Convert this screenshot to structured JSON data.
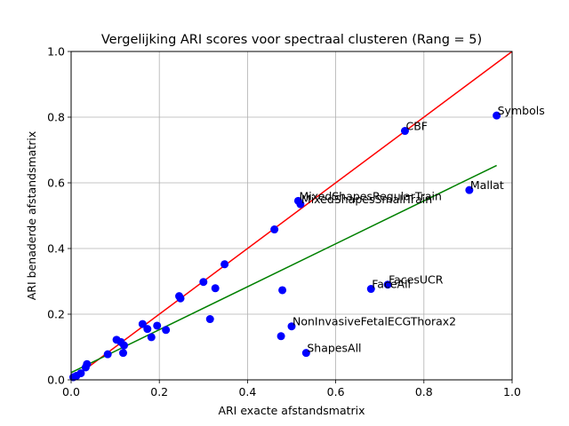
{
  "chart_data": {
    "type": "scatter",
    "title": "Vergelijking ARI scores voor spectraal clusteren (Rang = 5)",
    "xlabel": "ARI exacte afstandsmatrix",
    "ylabel": "ARI benaderde afstandsmatrix",
    "xlim": [
      0,
      1
    ],
    "ylim": [
      0,
      1
    ],
    "xticks": [
      "0.0",
      "0.2",
      "0.4",
      "0.6",
      "0.8",
      "1.0"
    ],
    "yticks": [
      "0.0",
      "0.2",
      "0.4",
      "0.6",
      "0.8",
      "1.0"
    ],
    "grid": true,
    "point_color": "#0000ff",
    "lines": [
      {
        "color": "#ff0000",
        "x": [
          0,
          1
        ],
        "y": [
          0,
          1
        ]
      },
      {
        "color": "#008000",
        "x": [
          0,
          0.965
        ],
        "y": [
          0.022,
          0.653
        ]
      }
    ],
    "points": [
      {
        "x": 0.005,
        "y": 0.008,
        "label": ""
      },
      {
        "x": 0.012,
        "y": 0.012,
        "label": ""
      },
      {
        "x": 0.022,
        "y": 0.02,
        "label": ""
      },
      {
        "x": 0.033,
        "y": 0.038,
        "label": ""
      },
      {
        "x": 0.036,
        "y": 0.048,
        "label": ""
      },
      {
        "x": 0.083,
        "y": 0.078,
        "label": ""
      },
      {
        "x": 0.103,
        "y": 0.122,
        "label": ""
      },
      {
        "x": 0.113,
        "y": 0.115,
        "label": ""
      },
      {
        "x": 0.118,
        "y": 0.082,
        "label": ""
      },
      {
        "x": 0.12,
        "y": 0.105,
        "label": ""
      },
      {
        "x": 0.162,
        "y": 0.17,
        "label": ""
      },
      {
        "x": 0.173,
        "y": 0.155,
        "label": ""
      },
      {
        "x": 0.182,
        "y": 0.13,
        "label": ""
      },
      {
        "x": 0.195,
        "y": 0.165,
        "label": ""
      },
      {
        "x": 0.215,
        "y": 0.152,
        "label": ""
      },
      {
        "x": 0.245,
        "y": 0.255,
        "label": ""
      },
      {
        "x": 0.248,
        "y": 0.248,
        "label": ""
      },
      {
        "x": 0.3,
        "y": 0.298,
        "label": ""
      },
      {
        "x": 0.315,
        "y": 0.185,
        "label": ""
      },
      {
        "x": 0.327,
        "y": 0.279,
        "label": ""
      },
      {
        "x": 0.348,
        "y": 0.352,
        "label": ""
      },
      {
        "x": 0.461,
        "y": 0.458,
        "label": ""
      },
      {
        "x": 0.476,
        "y": 0.133,
        "label": ""
      },
      {
        "x": 0.479,
        "y": 0.273,
        "label": ""
      },
      {
        "x": 0.5,
        "y": 0.163,
        "label": "NonInvasiveFetalECGThorax2"
      },
      {
        "x": 0.515,
        "y": 0.545,
        "label": "MixedShapesRegularTrain"
      },
      {
        "x": 0.52,
        "y": 0.535,
        "label": "MixedShapesSmallTrain"
      },
      {
        "x": 0.533,
        "y": 0.082,
        "label": "ShapesAll"
      },
      {
        "x": 0.68,
        "y": 0.277,
        "label": "FaceAll"
      },
      {
        "x": 0.718,
        "y": 0.29,
        "label": "FacesUCR"
      },
      {
        "x": 0.757,
        "y": 0.758,
        "label": "CBF"
      },
      {
        "x": 0.903,
        "y": 0.578,
        "label": "Mallat"
      },
      {
        "x": 0.965,
        "y": 0.805,
        "label": "Symbols"
      }
    ]
  }
}
